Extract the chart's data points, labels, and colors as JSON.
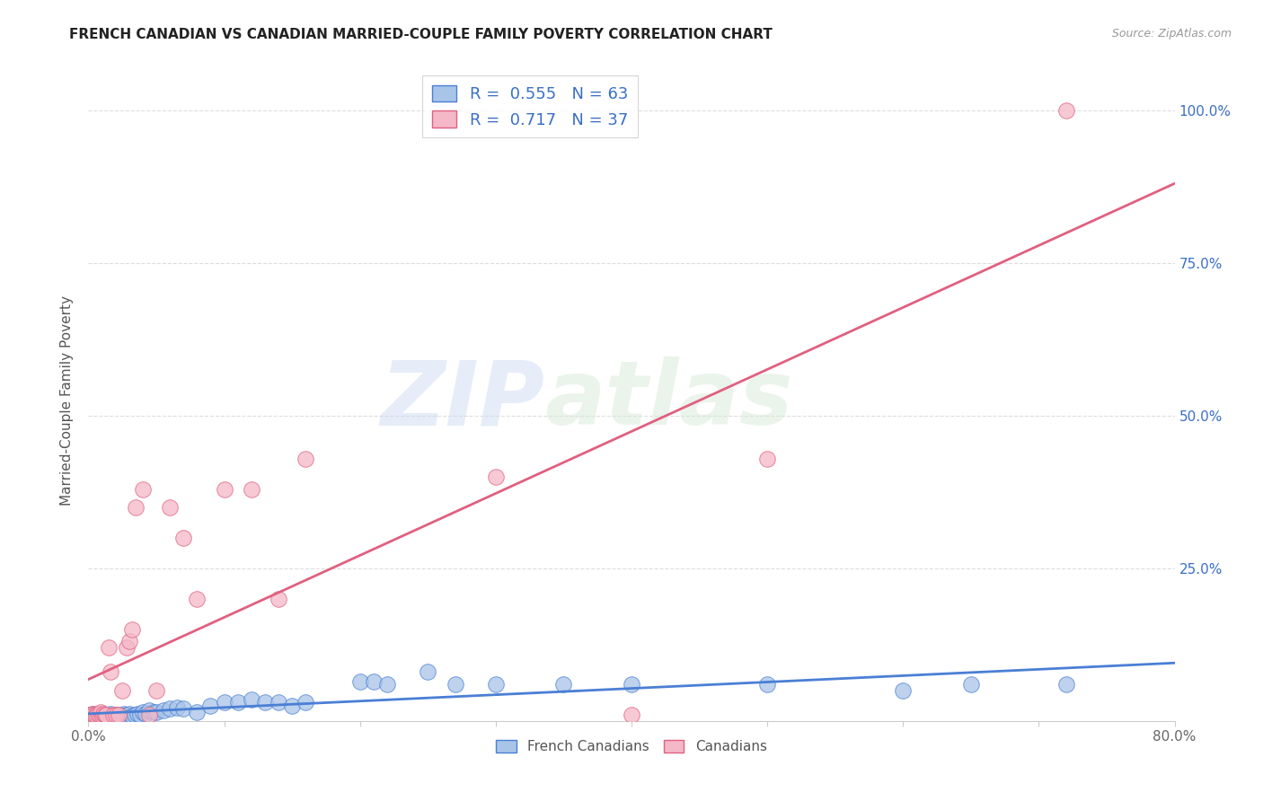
{
  "title": "FRENCH CANADIAN VS CANADIAN MARRIED-COUPLE FAMILY POVERTY CORRELATION CHART",
  "source": "Source: ZipAtlas.com",
  "ylabel": "Married-Couple Family Poverty",
  "xlim": [
    0,
    0.8
  ],
  "ylim": [
    0,
    1.05
  ],
  "ytick_positions": [
    0.0,
    0.25,
    0.5,
    0.75,
    1.0
  ],
  "ytick_labels": [
    "",
    "25.0%",
    "50.0%",
    "75.0%",
    "100.0%"
  ],
  "watermark_zip": "ZIP",
  "watermark_atlas": "atlas",
  "blue_color": "#a8c4e8",
  "pink_color": "#f4b8c8",
  "blue_line_color": "#4a7fd4",
  "pink_line_color": "#e06080",
  "R_blue": 0.555,
  "N_blue": 63,
  "R_pink": 0.717,
  "N_pink": 37,
  "blue_scatter_x": [
    0.001,
    0.002,
    0.003,
    0.004,
    0.005,
    0.006,
    0.007,
    0.008,
    0.009,
    0.01,
    0.011,
    0.012,
    0.013,
    0.014,
    0.015,
    0.016,
    0.017,
    0.018,
    0.019,
    0.02,
    0.021,
    0.022,
    0.023,
    0.024,
    0.025,
    0.026,
    0.027,
    0.028,
    0.03,
    0.032,
    0.034,
    0.036,
    0.038,
    0.04,
    0.042,
    0.045,
    0.048,
    0.05,
    0.055,
    0.06,
    0.065,
    0.07,
    0.08,
    0.09,
    0.1,
    0.11,
    0.12,
    0.13,
    0.14,
    0.15,
    0.16,
    0.2,
    0.21,
    0.22,
    0.25,
    0.27,
    0.3,
    0.35,
    0.4,
    0.5,
    0.6,
    0.65,
    0.72
  ],
  "blue_scatter_y": [
    0.01,
    0.008,
    0.012,
    0.005,
    0.008,
    0.01,
    0.007,
    0.012,
    0.008,
    0.01,
    0.006,
    0.009,
    0.007,
    0.01,
    0.008,
    0.012,
    0.007,
    0.009,
    0.008,
    0.01,
    0.006,
    0.008,
    0.01,
    0.007,
    0.009,
    0.011,
    0.008,
    0.01,
    0.012,
    0.008,
    0.01,
    0.012,
    0.01,
    0.015,
    0.012,
    0.018,
    0.014,
    0.015,
    0.018,
    0.02,
    0.022,
    0.02,
    0.015,
    0.025,
    0.03,
    0.03,
    0.035,
    0.03,
    0.03,
    0.025,
    0.03,
    0.065,
    0.065,
    0.06,
    0.08,
    0.06,
    0.06,
    0.06,
    0.06,
    0.06,
    0.05,
    0.06,
    0.06
  ],
  "pink_scatter_x": [
    0.001,
    0.002,
    0.003,
    0.004,
    0.005,
    0.006,
    0.007,
    0.008,
    0.009,
    0.01,
    0.011,
    0.012,
    0.013,
    0.015,
    0.016,
    0.018,
    0.02,
    0.022,
    0.025,
    0.028,
    0.03,
    0.032,
    0.035,
    0.04,
    0.045,
    0.05,
    0.06,
    0.07,
    0.08,
    0.1,
    0.12,
    0.14,
    0.16,
    0.3,
    0.4,
    0.5,
    0.72
  ],
  "pink_scatter_y": [
    0.008,
    0.01,
    0.012,
    0.01,
    0.008,
    0.01,
    0.012,
    0.01,
    0.015,
    0.008,
    0.012,
    0.01,
    0.01,
    0.12,
    0.08,
    0.01,
    0.01,
    0.01,
    0.05,
    0.12,
    0.13,
    0.15,
    0.35,
    0.38,
    0.01,
    0.05,
    0.35,
    0.3,
    0.2,
    0.38,
    0.38,
    0.2,
    0.43,
    0.4,
    0.01,
    0.43,
    1.0
  ],
  "grid_color": "#dddddd",
  "background_color": "#ffffff",
  "label_color": "#3a6fc4",
  "legend_label_blue": "French Canadians",
  "legend_label_pink": "Canadians"
}
